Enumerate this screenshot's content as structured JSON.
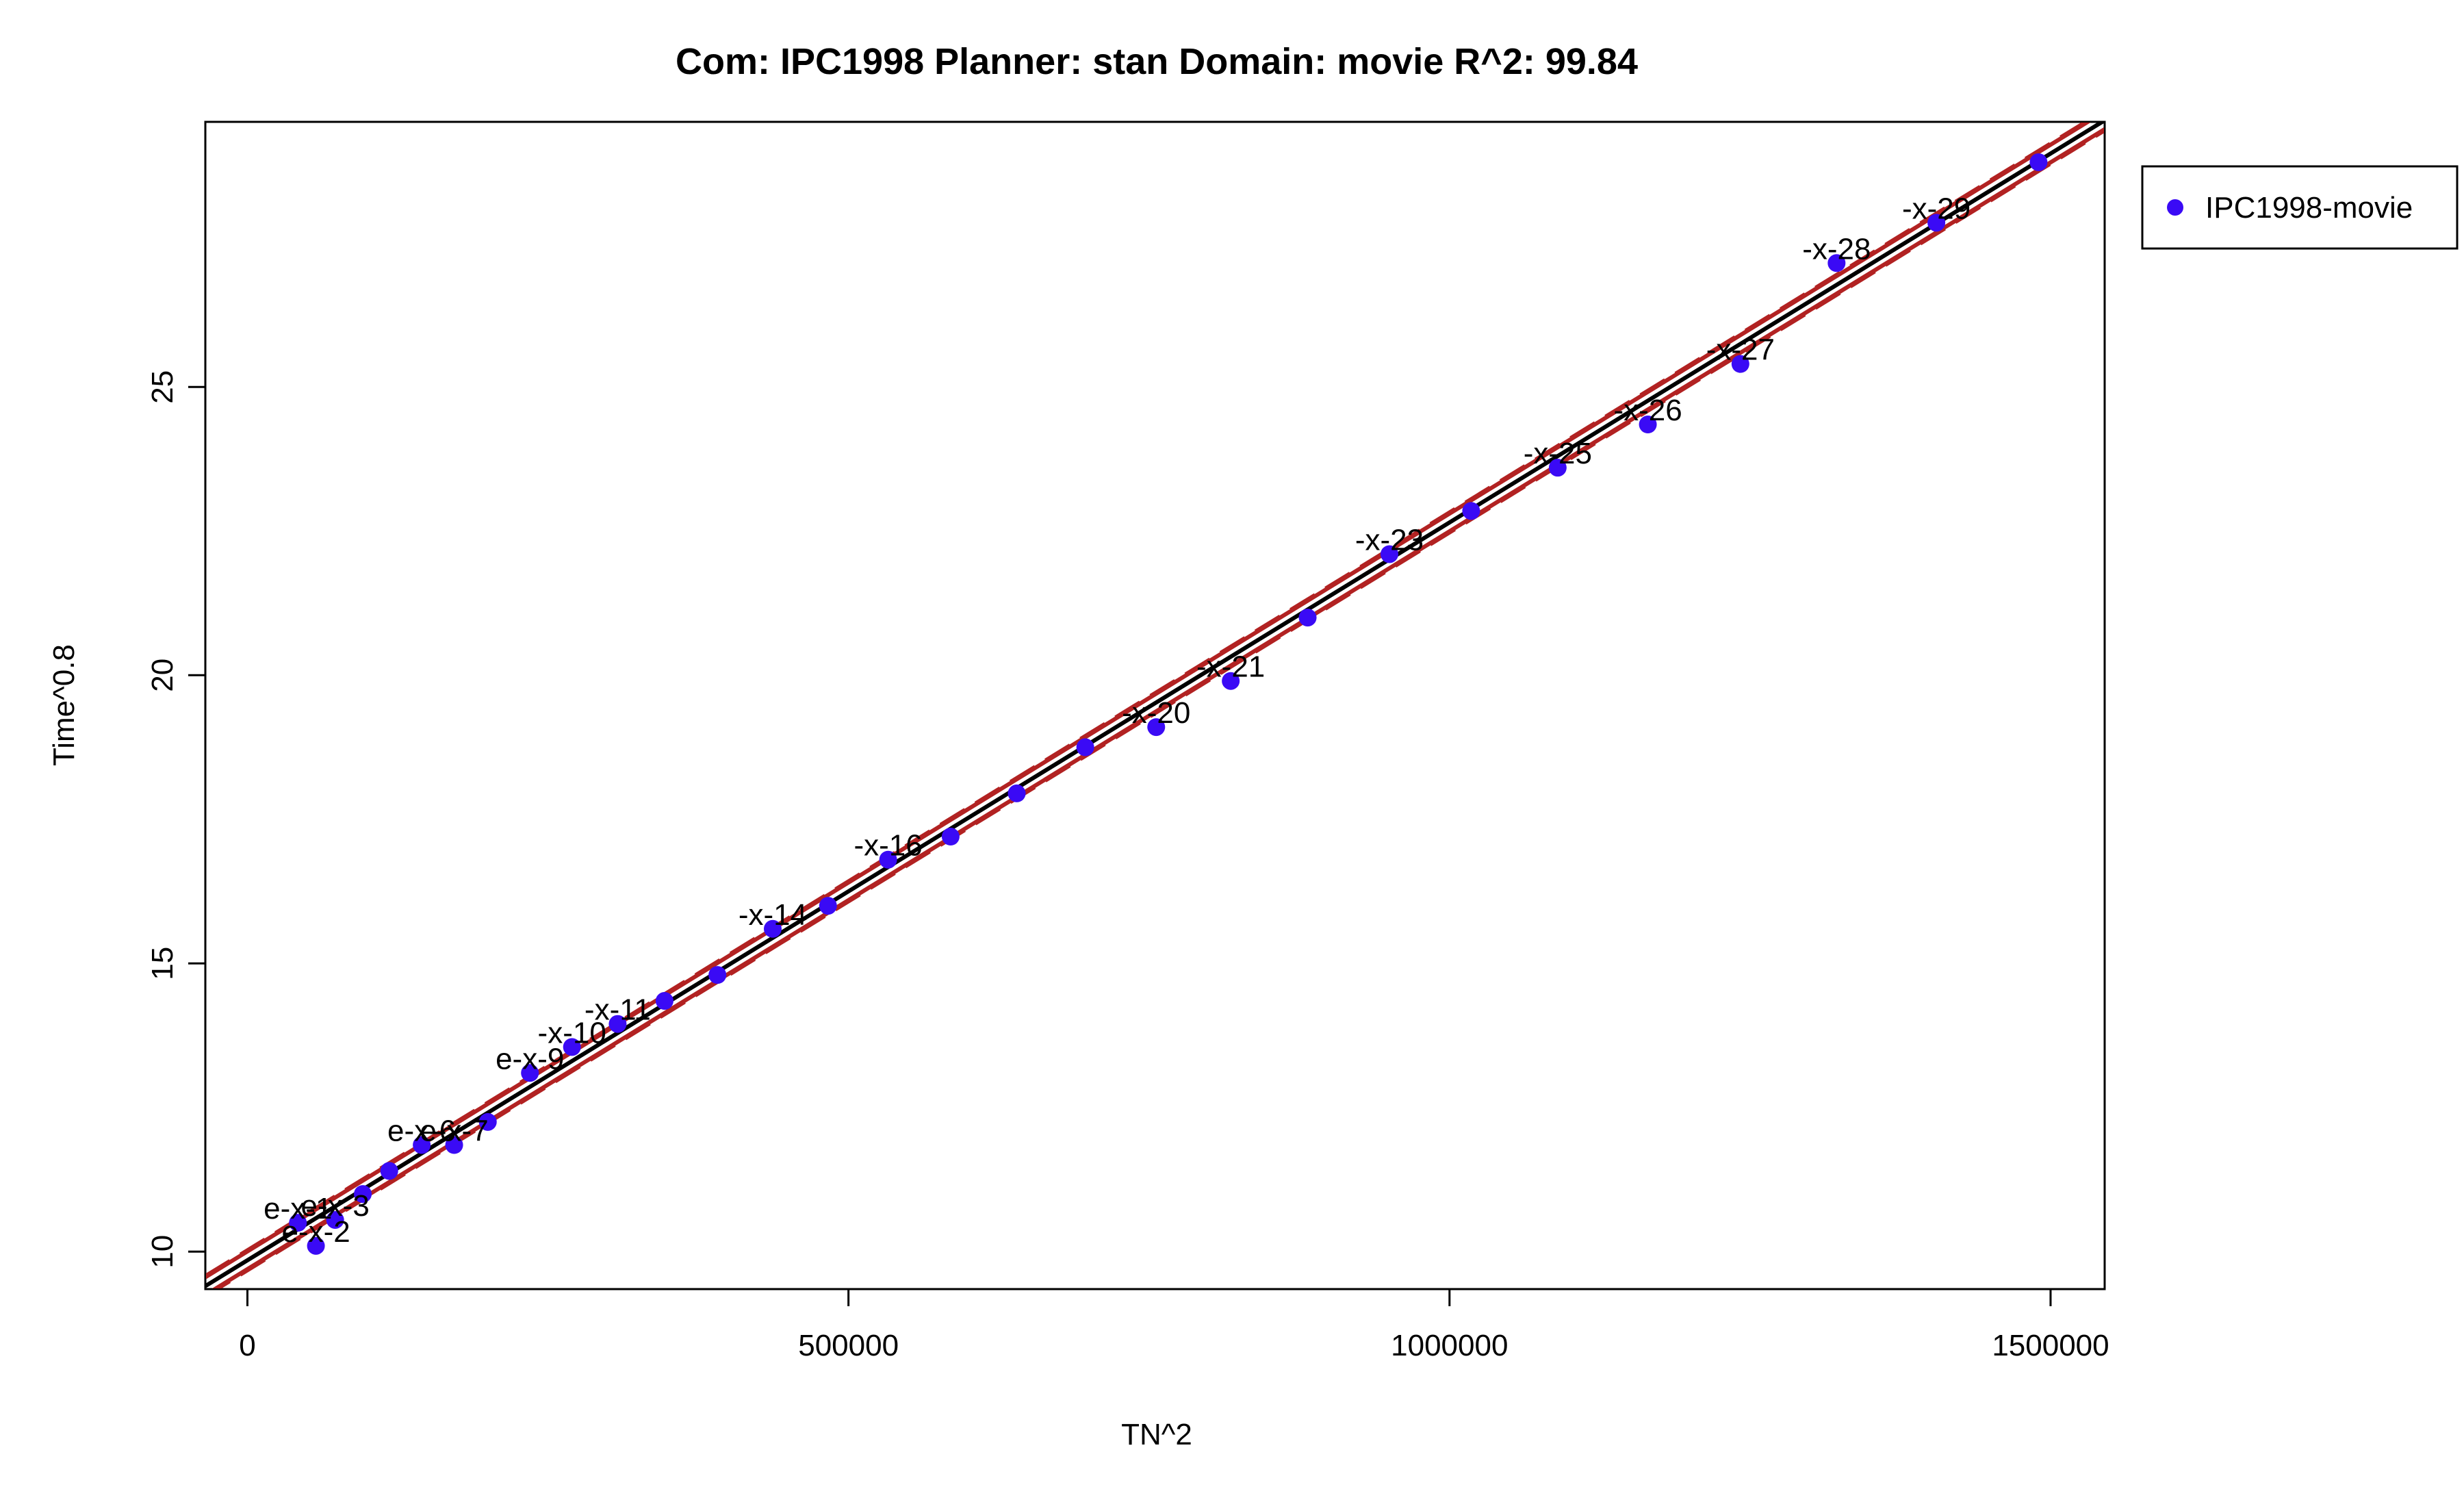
{
  "chart_data": {
    "type": "scatter",
    "title": "Com: IPC1998 Planner: stan Domain: movie R^2: 99.84",
    "xlabel": "TN^2",
    "ylabel": "Time^0.8",
    "xlim": [
      -35000,
      1545000
    ],
    "ylim": [
      9.35,
      29.6
    ],
    "xticks": [
      0,
      500000,
      1000000,
      1500000
    ],
    "xtick_labels": [
      "0",
      "500000",
      "1000000",
      "1500000"
    ],
    "yticks": [
      10,
      15,
      20,
      25
    ],
    "ytick_labels": [
      "10",
      "15",
      "20",
      "25"
    ],
    "grid": false,
    "legend": {
      "position": "top-right-outside",
      "entries": [
        "IPC1998-movie"
      ]
    },
    "colors": {
      "points": "#3a0af5",
      "fit": "#000000",
      "bands": "#b22222"
    },
    "series": [
      {
        "name": "IPC1998-movie",
        "points": [
          {
            "x": 42000,
            "y": 10.5,
            "label": "e-x-1"
          },
          {
            "x": 57000,
            "y": 10.1,
            "label": "e-x-2"
          },
          {
            "x": 73000,
            "y": 10.55,
            "label": "e-x-3"
          },
          {
            "x": 96000,
            "y": 11.0,
            "label": ""
          },
          {
            "x": 118000,
            "y": 11.4,
            "label": ""
          },
          {
            "x": 145000,
            "y": 11.85,
            "label": "e-x-6"
          },
          {
            "x": 172000,
            "y": 11.85,
            "label": "e-x-7"
          },
          {
            "x": 200000,
            "y": 12.25,
            "label": ""
          },
          {
            "x": 235000,
            "y": 13.1,
            "label": "e-x-9"
          },
          {
            "x": 270000,
            "y": 13.55,
            "label": "-x-10"
          },
          {
            "x": 308000,
            "y": 13.95,
            "label": "-x-11"
          },
          {
            "x": 347000,
            "y": 14.35,
            "label": ""
          },
          {
            "x": 391000,
            "y": 14.8,
            "label": ""
          },
          {
            "x": 437000,
            "y": 15.6,
            "label": "-x-14"
          },
          {
            "x": 483000,
            "y": 16.0,
            "label": ""
          },
          {
            "x": 533000,
            "y": 16.8,
            "label": "-x-16"
          },
          {
            "x": 585000,
            "y": 17.2,
            "label": ""
          },
          {
            "x": 640000,
            "y": 17.95,
            "label": ""
          },
          {
            "x": 697000,
            "y": 18.75,
            "label": ""
          },
          {
            "x": 756000,
            "y": 19.1,
            "label": "-x-20"
          },
          {
            "x": 818000,
            "y": 19.9,
            "label": "-x-21"
          },
          {
            "x": 882000,
            "y": 21.0,
            "label": ""
          },
          {
            "x": 950000,
            "y": 22.1,
            "label": "-x-23"
          },
          {
            "x": 1018000,
            "y": 22.85,
            "label": ""
          },
          {
            "x": 1090000,
            "y": 23.6,
            "label": "-x-25"
          },
          {
            "x": 1165000,
            "y": 24.35,
            "label": "-x-26"
          },
          {
            "x": 1242000,
            "y": 25.4,
            "label": "-x-27"
          },
          {
            "x": 1322000,
            "y": 27.15,
            "label": "-x-28"
          },
          {
            "x": 1405000,
            "y": 27.85,
            "label": "-x-29"
          },
          {
            "x": 1490000,
            "y": 28.9,
            "label": ""
          }
        ]
      }
    ],
    "fit_line": {
      "intercept": 9.85,
      "slope": 1.28e-05
    },
    "prediction_band": {
      "offset": 0.18
    }
  }
}
